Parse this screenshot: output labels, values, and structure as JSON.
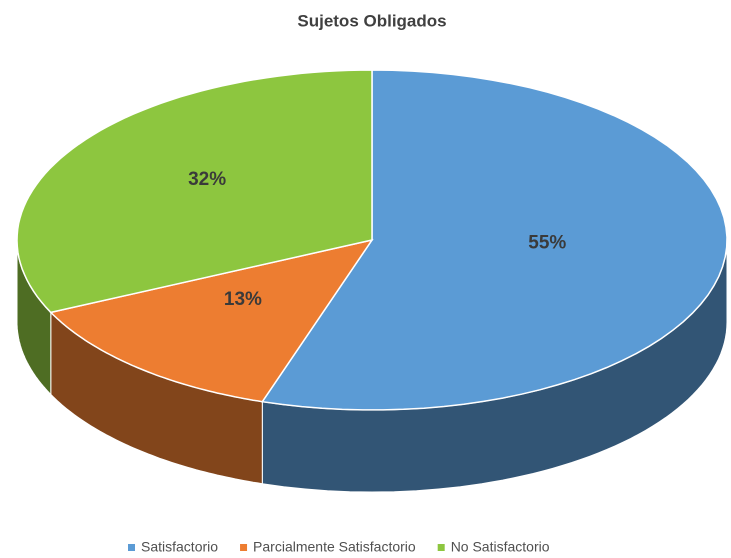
{
  "chart_data": {
    "type": "pie",
    "title": "Sujetos Obligados",
    "categories": [
      "Satisfactorio",
      "Parcialmente Satisfactorio",
      "No Satisfactorio"
    ],
    "values": [
      55,
      13,
      32
    ],
    "value_labels": [
      "55%",
      "13%",
      "32%"
    ],
    "colors": [
      "#5b9bd5",
      "#ed7d31",
      "#8dc63f"
    ],
    "legend": "bottom"
  }
}
